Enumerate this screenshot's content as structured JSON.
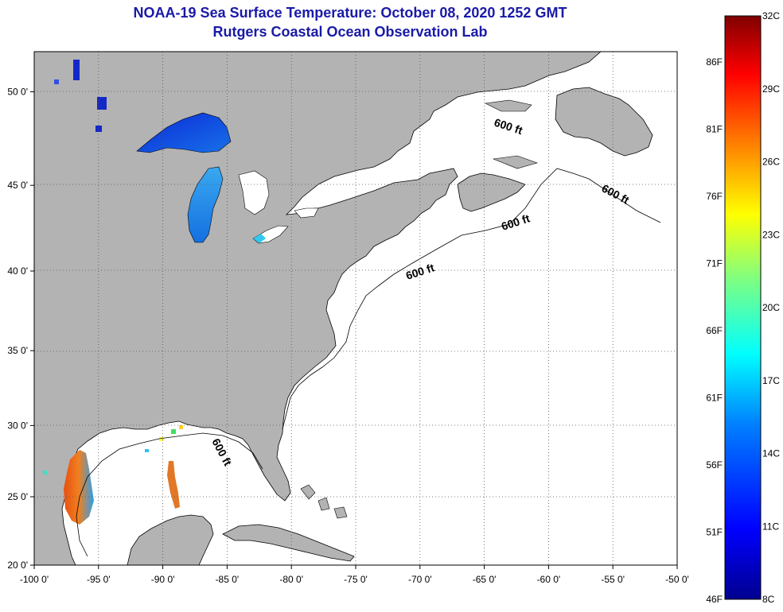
{
  "header": {
    "title": "NOAA-19 Sea Surface Temperature:  October 08, 2020 1252 GMT",
    "subtitle": "Rutgers Coastal Ocean Observation Lab"
  },
  "map": {
    "lon_range": [
      -100,
      -50
    ],
    "lat_range": [
      20,
      52
    ],
    "lon_ticks": [
      {
        "value": -100,
        "label": "-100 0'"
      },
      {
        "value": -95,
        "label": "-95 0'"
      },
      {
        "value": -90,
        "label": "-90 0'"
      },
      {
        "value": -85,
        "label": "-85 0'"
      },
      {
        "value": -80,
        "label": "-80 0'"
      },
      {
        "value": -75,
        "label": "-75 0'"
      },
      {
        "value": -70,
        "label": "-70 0'"
      },
      {
        "value": -65,
        "label": "-65 0'"
      },
      {
        "value": -60,
        "label": "-60 0'"
      },
      {
        "value": -55,
        "label": "-55 0'"
      },
      {
        "value": -50,
        "label": "-50 0'"
      }
    ],
    "lat_ticks": [
      {
        "value": 50,
        "label": "50 0'"
      },
      {
        "value": 45,
        "label": "45 0'"
      },
      {
        "value": 40,
        "label": "40 0'"
      },
      {
        "value": 35,
        "label": "35 0'"
      },
      {
        "value": 30,
        "label": "30 0'"
      },
      {
        "value": 25,
        "label": "25 0'"
      },
      {
        "value": 20,
        "label": "20 0'"
      }
    ],
    "isobath_label": "600 ft",
    "colors": {
      "land": "#b3b3b3",
      "ocean": "#ffffff",
      "grid": "#000000"
    }
  },
  "colorbar": {
    "celsius_labels": [
      "32C",
      "29C",
      "26C",
      "23C",
      "20C",
      "17C",
      "14C",
      "11C",
      "8C"
    ],
    "fahrenheit_labels": [
      "86F",
      "81F",
      "76F",
      "71F",
      "66F",
      "61F",
      "56F",
      "51F",
      "46F"
    ],
    "gradient": [
      "#00008f",
      "#0000ff",
      "#0080ff",
      "#00ffff",
      "#80ff80",
      "#ffff00",
      "#ff8000",
      "#ff0000",
      "#800000"
    ]
  }
}
